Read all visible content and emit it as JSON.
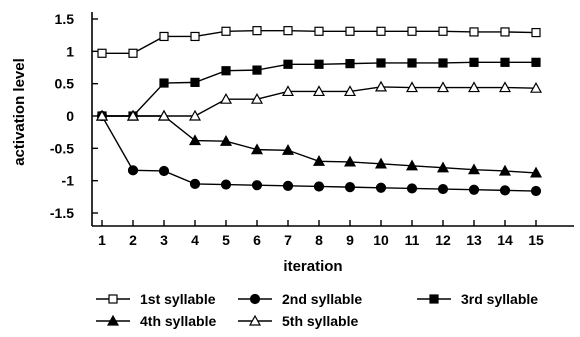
{
  "chart_data": {
    "type": "line",
    "title": "",
    "xlabel": "iteration",
    "ylabel": "activation level",
    "x": [
      1,
      2,
      3,
      4,
      5,
      6,
      7,
      8,
      9,
      10,
      11,
      12,
      13,
      14,
      15
    ],
    "xticks": [
      "1",
      "2",
      "3",
      "4",
      "5",
      "6",
      "7",
      "8",
      "9",
      "10",
      "11",
      "12",
      "13",
      "14",
      "15"
    ],
    "yticks": [
      "1.5",
      "1",
      "0.5",
      "0",
      "-0.5",
      "-1",
      "-1.5"
    ],
    "ylim": [
      -1.5,
      1.5
    ],
    "grid": false,
    "legend_position": "bottom",
    "series": [
      {
        "name": "1st syllable",
        "marker": "open-square",
        "values": [
          0.97,
          0.97,
          1.23,
          1.23,
          1.31,
          1.32,
          1.32,
          1.31,
          1.31,
          1.31,
          1.31,
          1.31,
          1.3,
          1.3,
          1.29
        ]
      },
      {
        "name": "2nd syllable",
        "marker": "filled-circle",
        "values": [
          0.0,
          -0.84,
          -0.85,
          -1.05,
          -1.06,
          -1.07,
          -1.08,
          -1.09,
          -1.1,
          -1.11,
          -1.12,
          -1.13,
          -1.14,
          -1.15,
          -1.16
        ]
      },
      {
        "name": "3rd syllable",
        "marker": "filled-square",
        "values": [
          0.0,
          0.0,
          0.51,
          0.52,
          0.7,
          0.71,
          0.8,
          0.8,
          0.81,
          0.82,
          0.82,
          0.82,
          0.83,
          0.83,
          0.83
        ]
      },
      {
        "name": "4th syllable",
        "marker": "filled-triangle",
        "values": [
          0.0,
          0.0,
          0.0,
          -0.38,
          -0.39,
          -0.52,
          -0.53,
          -0.7,
          -0.71,
          -0.74,
          -0.77,
          -0.8,
          -0.83,
          -0.85,
          -0.88
        ]
      },
      {
        "name": "5th syllable",
        "marker": "open-triangle",
        "values": [
          0.0,
          0.0,
          0.0,
          0.0,
          0.26,
          0.26,
          0.38,
          0.38,
          0.38,
          0.45,
          0.44,
          0.44,
          0.44,
          0.44,
          0.43
        ]
      }
    ]
  }
}
